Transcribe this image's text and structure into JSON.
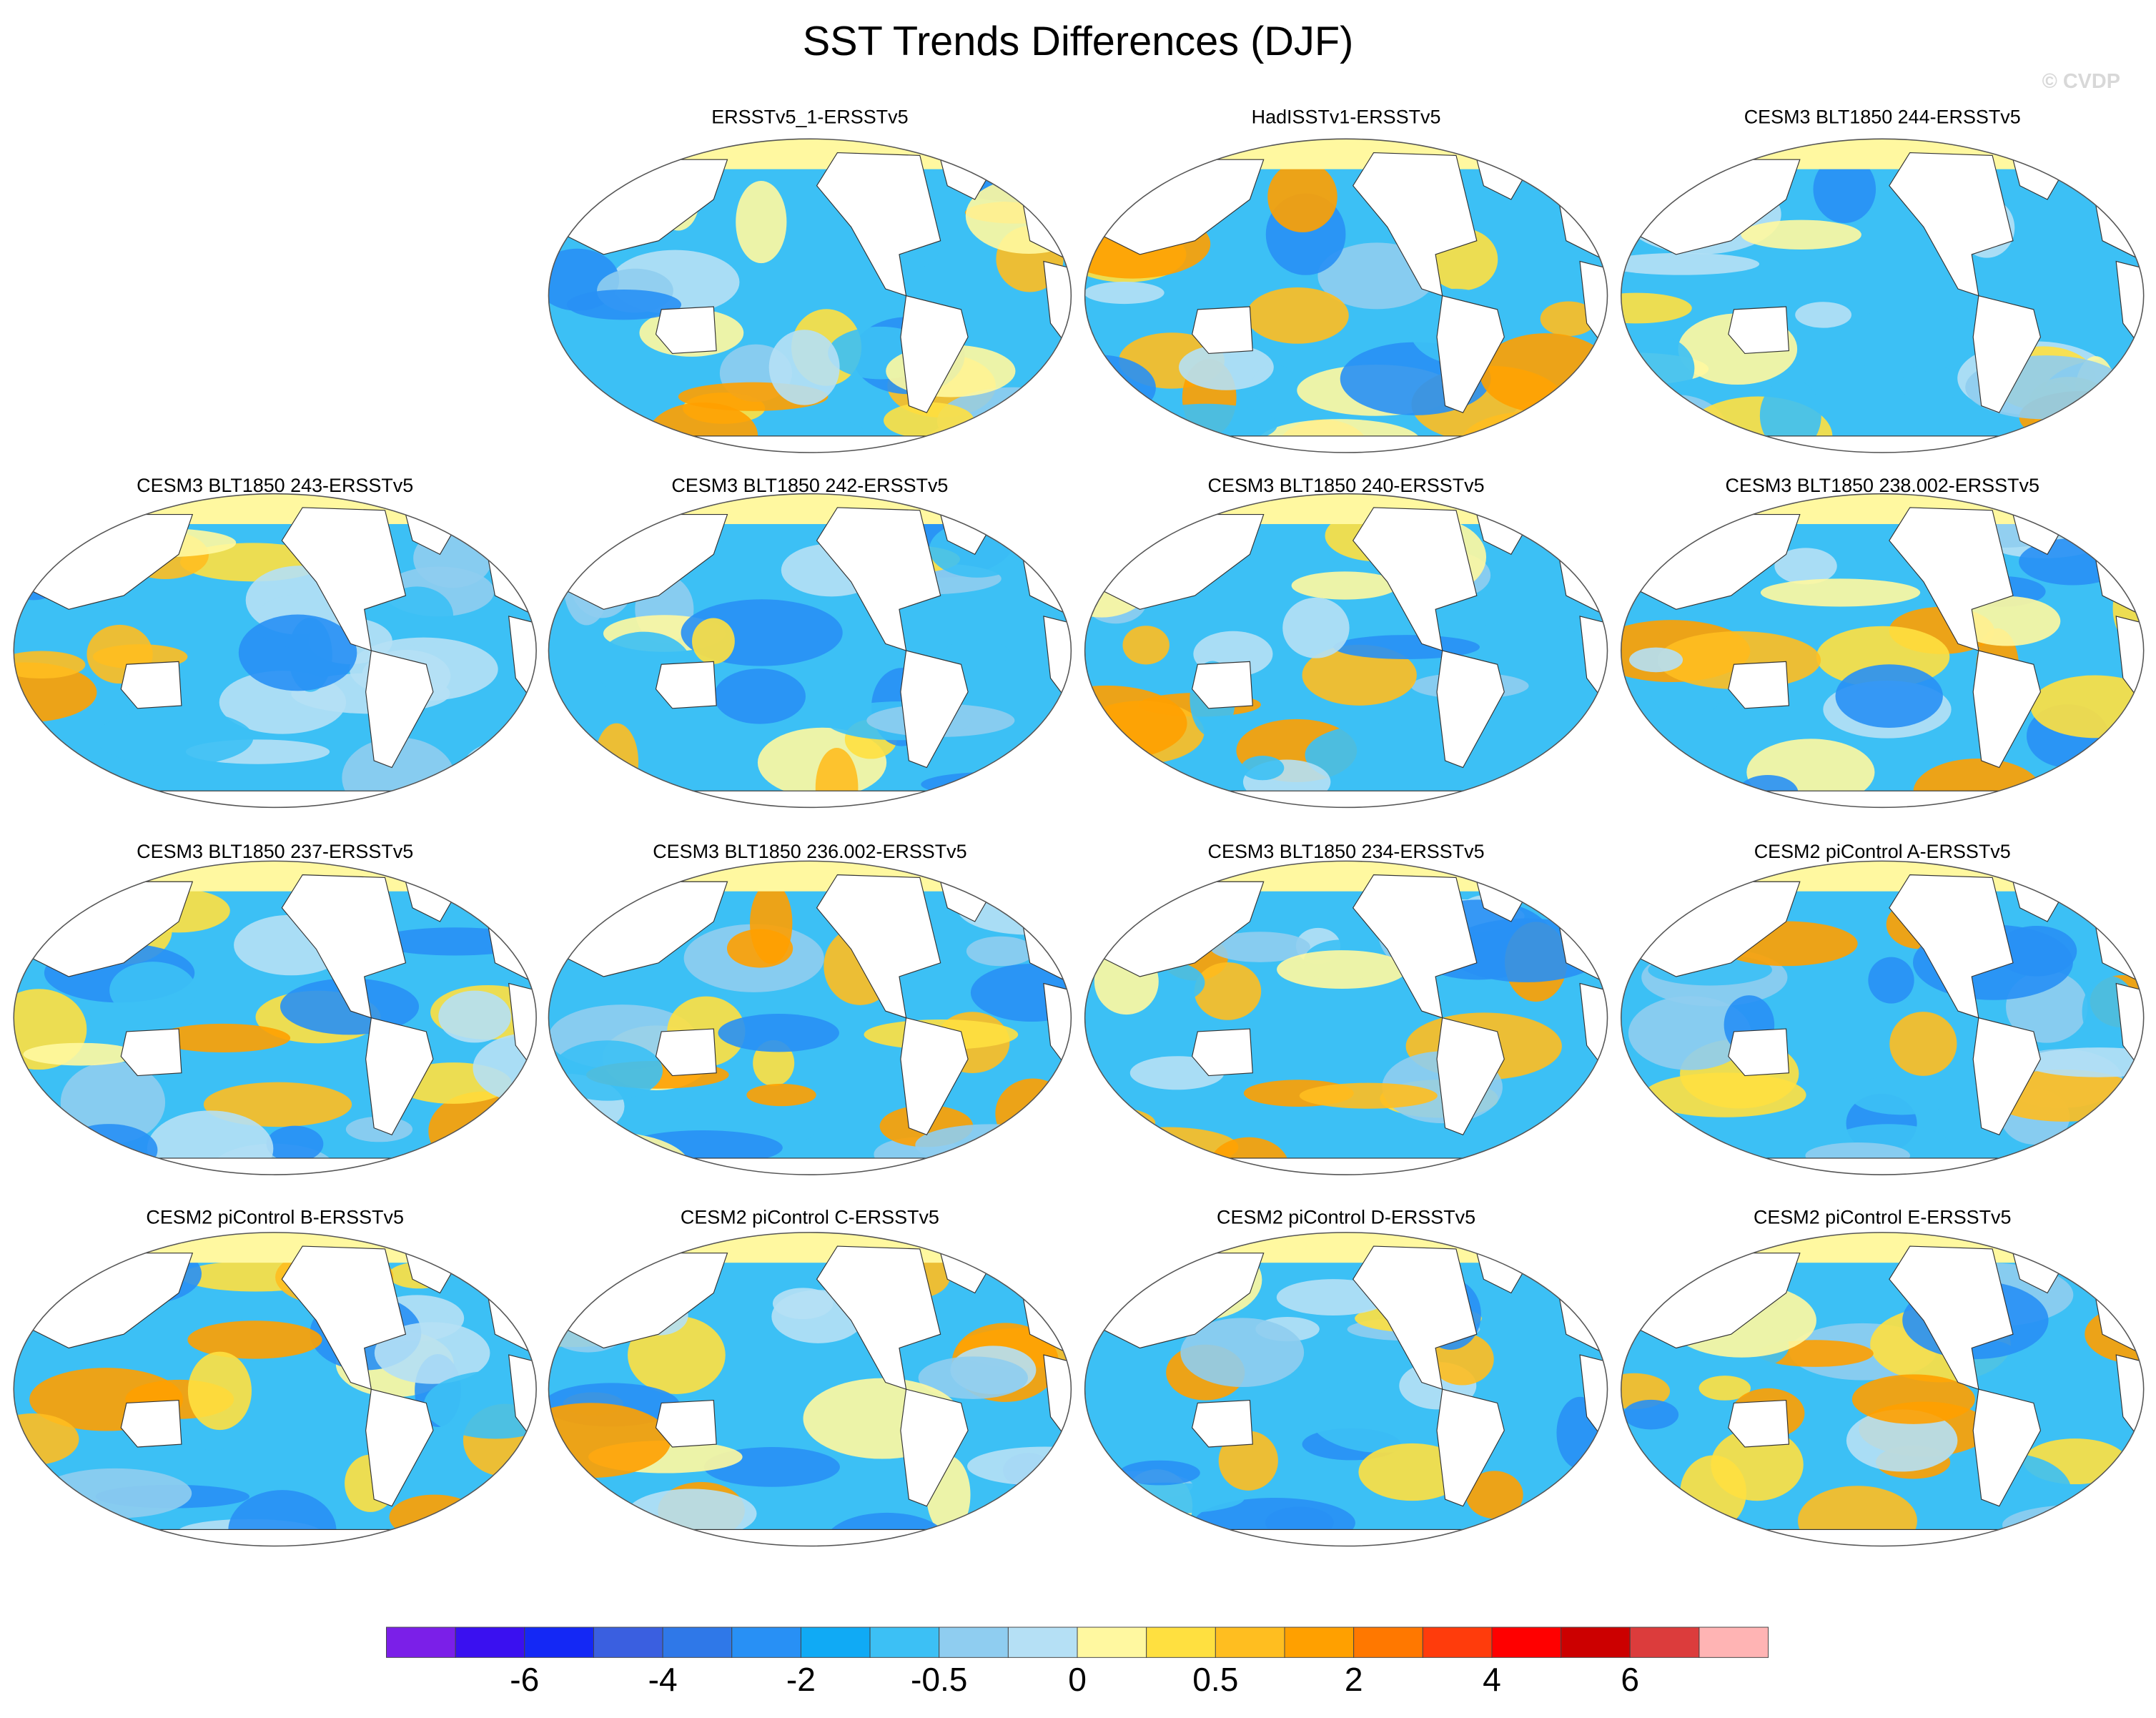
{
  "title": "SST Trends Differences (DJF)",
  "watermark": "© CVDP",
  "panels": [
    {
      "title": "ERSSTv5_1-ERSSTv5"
    },
    {
      "title": "HadISSTv1-ERSSTv5"
    },
    {
      "title": "CESM3 BLT1850 244-ERSSTv5"
    },
    {
      "title": "CESM3 BLT1850 243-ERSSTv5"
    },
    {
      "title": "CESM3 BLT1850 242-ERSSTv5"
    },
    {
      "title": "CESM3 BLT1850 240-ERSSTv5"
    },
    {
      "title": "CESM3 BLT1850 238.002-ERSSTv5"
    },
    {
      "title": "CESM3 BLT1850 237-ERSSTv5"
    },
    {
      "title": "CESM3 BLT1850 236.002-ERSSTv5"
    },
    {
      "title": "CESM3 BLT1850 234-ERSSTv5"
    },
    {
      "title": "CESM2 piControl A-ERSSTv5"
    },
    {
      "title": "CESM2 piControl B-ERSSTv5"
    },
    {
      "title": "CESM2 piControl C-ERSSTv5"
    },
    {
      "title": "CESM2 piControl D-ERSSTv5"
    },
    {
      "title": "CESM2 piControl E-ERSSTv5"
    }
  ],
  "colorbar": {
    "colors": [
      "#7b1fe8",
      "#3a10f0",
      "#1428f5",
      "#3a5fe0",
      "#2f78e8",
      "#2890f5",
      "#10aaf5",
      "#3cc0f5",
      "#8fcdf0",
      "#b5e0f5",
      "#fff8a0",
      "#ffe040",
      "#ffbe20",
      "#ffa000",
      "#ff7800",
      "#ff3c0c",
      "#ff0000",
      "#cc0000",
      "#dc3c3c",
      "#ffb4b4"
    ],
    "labels": [
      -6,
      -4,
      -2,
      -0.5,
      0,
      0.5,
      2,
      4,
      6
    ]
  }
}
